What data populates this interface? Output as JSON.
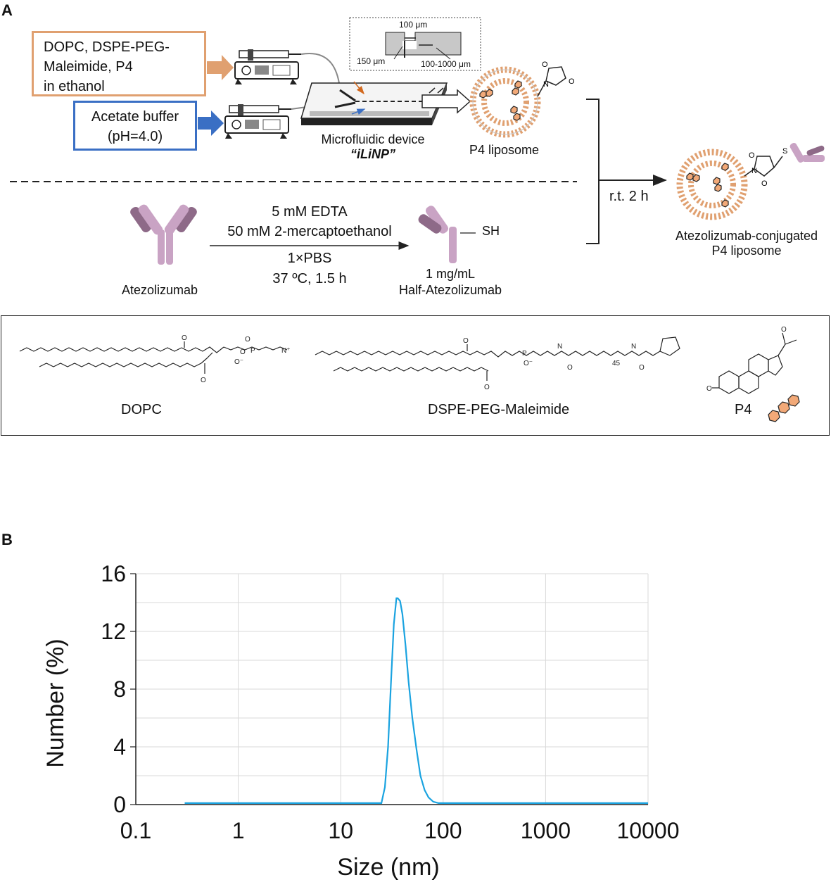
{
  "panel_a": {
    "label": "A",
    "ethanol_box": [
      "DOPC, DSPE-PEG-",
      "Maleimide, P4",
      "in ethanol"
    ],
    "buffer_box": [
      "Acetate buffer",
      "(pH=4.0)"
    ],
    "device_label": "Microfluidic device",
    "device_name": "“iLiNP”",
    "inset_labels": [
      "100 μm",
      "150 μm",
      "100-1000 μm"
    ],
    "p4_liposome_label": "P4 liposome",
    "reaction_label": "r.t. 2 h",
    "product_label": [
      "Atezolizumab-conjugated",
      "P4 liposome"
    ],
    "atezolizumab_label": "Atezolizumab",
    "conditions_above": [
      "5 mM EDTA",
      "50 mM 2-mercaptoethanol"
    ],
    "conditions_below": [
      "1×PBS",
      "37 ºC, 1.5 h"
    ],
    "half_label": [
      "1 mg/mL",
      "Half-Atezolizumab"
    ],
    "sh_label": "SH",
    "chem_labels": [
      "DOPC",
      "DSPE-PEG-Maleimide",
      "P4"
    ],
    "peg_subscript": "45"
  },
  "colors": {
    "orange": "#e0a070",
    "blue": "#3a6fc4",
    "antibody": "#c9a3c4",
    "antibody_dark": "#8e6a88",
    "hexagon": "#f2a978",
    "curve": "#1aa3e0"
  },
  "panel_b": {
    "label": "B"
  },
  "chart_data": {
    "type": "line",
    "xlabel": "Size (nm)",
    "ylabel": "Number (%)",
    "x_scale": "log",
    "xlim": [
      0.1,
      10000
    ],
    "ylim": [
      0,
      16
    ],
    "x_ticks": [
      "0.1",
      "1",
      "10",
      "100",
      "1000",
      "10000"
    ],
    "y_ticks": [
      "0",
      "4",
      "8",
      "12",
      "16"
    ],
    "grid": true,
    "series": [
      {
        "x": [
          0.3,
          1,
          10,
          20,
          25,
          27,
          29,
          31,
          33,
          35,
          36,
          38,
          40,
          43,
          46,
          50,
          55,
          60,
          66,
          72,
          80,
          90,
          100,
          200,
          1000,
          10000
        ],
        "y": [
          0.1,
          0.1,
          0.1,
          0.1,
          0.1,
          1.2,
          4.0,
          8.5,
          12.5,
          14.3,
          14.3,
          14.1,
          13.2,
          11.0,
          8.5,
          6.0,
          3.8,
          2.0,
          1.0,
          0.5,
          0.2,
          0.1,
          0.1,
          0.1,
          0.1,
          0.1
        ]
      }
    ]
  }
}
